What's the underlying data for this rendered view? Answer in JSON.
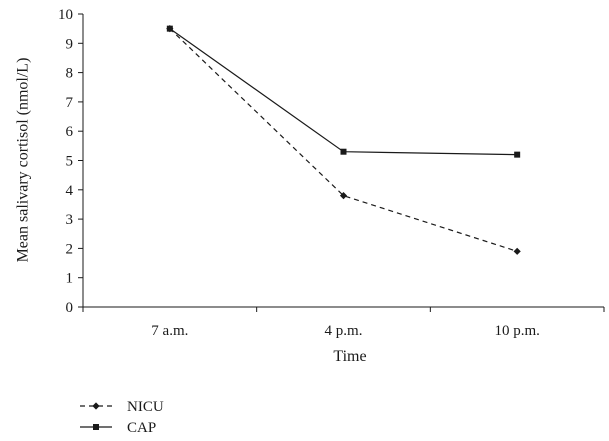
{
  "chart_data": {
    "type": "line",
    "categories": [
      "7 a.m.",
      "4 p.m.",
      "10 p.m."
    ],
    "xlabel": "Time",
    "ylabel": "Mean salivary cortisol (nmol/L)",
    "ylim": [
      0,
      10
    ],
    "yticks": [
      "0",
      "1",
      "2",
      "3",
      "4",
      "5",
      "6",
      "7",
      "8",
      "9",
      "10"
    ],
    "grid": false,
    "legend_position": "bottom-left",
    "series": [
      {
        "name": "NICU",
        "values": [
          9.5,
          3.8,
          1.9
        ],
        "line_style": "dashed",
        "marker": "diamond",
        "color": "#1a1a1a"
      },
      {
        "name": "CAP",
        "values": [
          9.5,
          5.3,
          5.2
        ],
        "line_style": "solid",
        "marker": "square",
        "color": "#1a1a1a"
      }
    ]
  }
}
